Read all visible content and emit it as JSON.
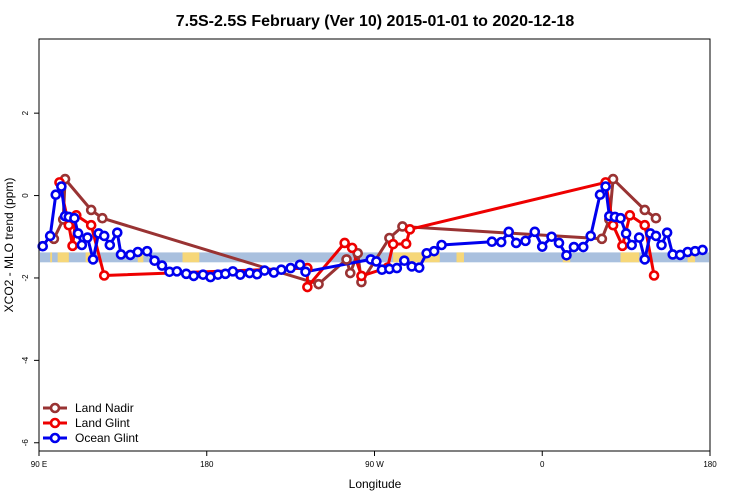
{
  "chart_data": {
    "type": "line",
    "title": "7.5S-2.5S February (Ver 10)   2015-01-01 to 2020-12-18",
    "xlabel": "Longitude",
    "ylabel": "XCO2 - MLO trend (ppm)",
    "xlim": [
      90,
      450
    ],
    "ylim": [
      -6.2,
      3.8
    ],
    "x_ticks": [
      {
        "value": 90,
        "label": "90 E"
      },
      {
        "value": 180,
        "label": "180"
      },
      {
        "value": 270,
        "label": "90 W"
      },
      {
        "value": 360,
        "label": "0"
      },
      {
        "value": 450,
        "label": "180"
      }
    ],
    "y_ticks": [
      {
        "value": 2,
        "label": "2"
      },
      {
        "value": 0,
        "label": "0"
      },
      {
        "value": -2,
        "label": "-2"
      },
      {
        "value": -4,
        "label": "-4"
      },
      {
        "value": -6,
        "label": "-6"
      }
    ],
    "x_tick_marks_repeat": [
      90,
      180,
      270,
      360,
      450,
      540
    ],
    "band": {
      "y_top": -1.38,
      "y_bottom": -1.62,
      "ocean_color": "#a9c0de",
      "land_color": "#f6d779"
    },
    "band_land_segments": [
      [
        96,
        97
      ],
      [
        100,
        106
      ],
      [
        115,
        118
      ],
      [
        143,
        146
      ],
      [
        167,
        176
      ],
      [
        280,
        305
      ],
      [
        314,
        318
      ],
      [
        371,
        375
      ],
      [
        402,
        412
      ],
      [
        438,
        442
      ],
      [
        465,
        475
      ],
      [
        488,
        503
      ]
    ],
    "legend": {
      "position": "bottom-left",
      "entries": [
        {
          "name": "Land Nadir",
          "color": "#993333"
        },
        {
          "name": "Land Glint",
          "color": "#ee0000"
        },
        {
          "name": "Ocean Glint",
          "color": "#0000ee"
        }
      ]
    },
    "series": [
      {
        "name": "Ocean Glint",
        "color": "#0000ee",
        "points": [
          [
            92,
            -1.23
          ],
          [
            96,
            -0.98
          ],
          [
            99,
            0.02
          ],
          [
            102,
            0.22
          ],
          [
            104,
            -0.5
          ],
          [
            106,
            -0.52
          ],
          [
            109,
            -0.55
          ],
          [
            111,
            -0.92
          ],
          [
            113,
            -1.2
          ],
          [
            116,
            -1.02
          ],
          [
            119,
            -1.55
          ],
          [
            122,
            -0.92
          ],
          [
            125,
            -0.98
          ],
          [
            128,
            -1.2
          ],
          [
            132,
            -0.9
          ],
          [
            134,
            -1.43
          ],
          [
            139,
            -1.44
          ],
          [
            143,
            -1.37
          ],
          [
            148,
            -1.35
          ],
          [
            152,
            -1.58
          ],
          [
            156,
            -1.7
          ],
          [
            160,
            -1.85
          ],
          [
            164,
            -1.84
          ],
          [
            169,
            -1.9
          ],
          [
            173,
            -1.95
          ],
          [
            178,
            -1.92
          ],
          [
            182,
            -1.98
          ],
          [
            186,
            -1.92
          ],
          [
            190,
            -1.9
          ],
          [
            194,
            -1.84
          ],
          [
            198,
            -1.92
          ],
          [
            203,
            -1.88
          ],
          [
            207,
            -1.91
          ],
          [
            211,
            -1.82
          ],
          [
            216,
            -1.87
          ],
          [
            220,
            -1.8
          ],
          [
            225,
            -1.76
          ],
          [
            230,
            -1.68
          ],
          [
            233,
            -1.85
          ],
          [
            268,
            -1.55
          ],
          [
            271,
            -1.6
          ],
          [
            274,
            -1.8
          ],
          [
            278,
            -1.78
          ],
          [
            282,
            -1.76
          ],
          [
            286,
            -1.58
          ],
          [
            290,
            -1.72
          ],
          [
            294,
            -1.75
          ],
          [
            298,
            -1.4
          ],
          [
            302,
            -1.35
          ],
          [
            306,
            -1.2
          ],
          [
            333,
            -1.12
          ],
          [
            338,
            -1.13
          ],
          [
            342,
            -0.88
          ],
          [
            346,
            -1.15
          ],
          [
            351,
            -1.1
          ],
          [
            356,
            -0.88
          ],
          [
            360,
            -1.24
          ],
          [
            365,
            -1.0
          ],
          [
            369,
            -1.15
          ],
          [
            373,
            -1.45
          ],
          [
            377,
            -1.25
          ],
          [
            382,
            -1.25
          ],
          [
            386,
            -0.98
          ],
          [
            391,
            0.02
          ],
          [
            394,
            0.22
          ],
          [
            396,
            -0.5
          ],
          [
            399,
            -0.52
          ],
          [
            402,
            -0.55
          ],
          [
            405,
            -0.92
          ],
          [
            408,
            -1.2
          ],
          [
            412,
            -1.02
          ],
          [
            415,
            -1.55
          ],
          [
            418,
            -0.92
          ],
          [
            421,
            -0.98
          ],
          [
            424,
            -1.2
          ],
          [
            427,
            -0.9
          ],
          [
            430,
            -1.43
          ],
          [
            434,
            -1.44
          ],
          [
            438,
            -1.37
          ],
          [
            442,
            -1.35
          ],
          [
            446,
            -1.32
          ]
        ]
      },
      {
        "name": "Land Glint",
        "color": "#ee0000",
        "points": [
          [
            101,
            0.32
          ],
          [
            106,
            -0.72
          ],
          [
            108,
            -1.22
          ],
          [
            110,
            -0.48
          ],
          [
            118,
            -0.72
          ],
          [
            125,
            -1.94
          ],
          [
            234,
            -1.76
          ],
          [
            234,
            -2.22
          ],
          [
            254,
            -1.15
          ],
          [
            258,
            -1.27
          ],
          [
            263,
            -1.95
          ],
          [
            277,
            -1.75
          ],
          [
            280,
            -1.18
          ],
          [
            287,
            -1.17
          ],
          [
            289,
            -0.82
          ],
          [
            394,
            0.32
          ],
          [
            398,
            -0.72
          ],
          [
            403,
            -1.22
          ],
          [
            407,
            -0.48
          ],
          [
            415,
            -0.72
          ],
          [
            420,
            -1.94
          ]
        ]
      },
      {
        "name": "Land Nadir",
        "color": "#993333",
        "points": [
          [
            98,
            -1.05
          ],
          [
            103,
            -0.58
          ],
          [
            104,
            0.4
          ],
          [
            118,
            -0.35
          ],
          [
            124,
            -0.55
          ],
          [
            240,
            -2.15
          ],
          [
            255,
            -1.55
          ],
          [
            257,
            -1.88
          ],
          [
            261,
            -1.4
          ],
          [
            263,
            -2.1
          ],
          [
            278,
            -1.03
          ],
          [
            285,
            -0.75
          ],
          [
            392,
            -1.05
          ],
          [
            396,
            -0.58
          ],
          [
            398,
            0.4
          ],
          [
            415,
            -0.35
          ],
          [
            421,
            -0.55
          ]
        ]
      }
    ]
  }
}
